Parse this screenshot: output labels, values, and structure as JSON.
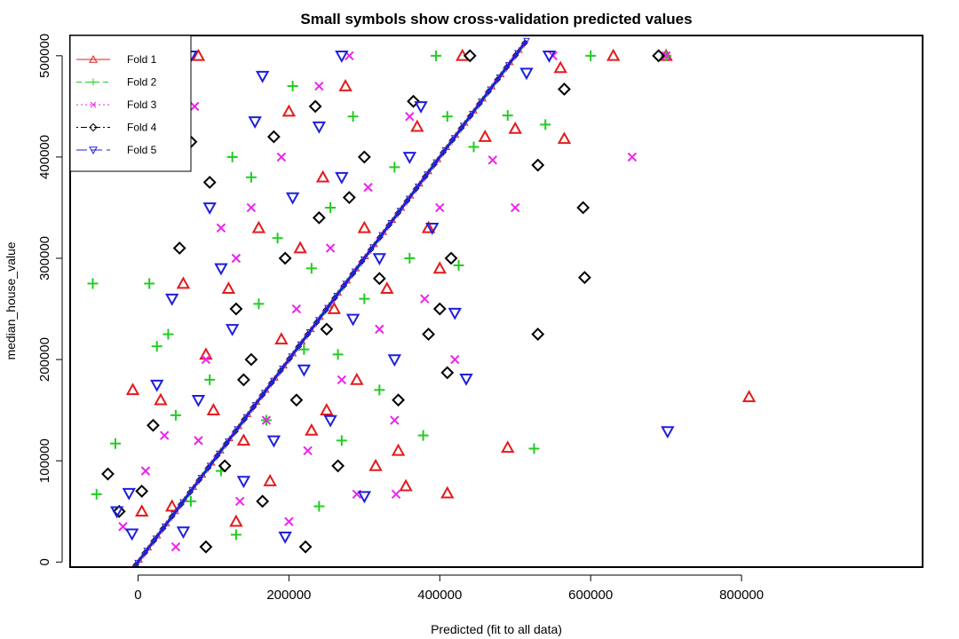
{
  "chart_data": {
    "type": "scatter",
    "title": "Small symbols show cross-validation predicted values",
    "xlabel": "Predicted (fit to all data)",
    "ylabel": "median_house_value",
    "xlim": [
      -90000,
      1040000
    ],
    "ylim": [
      -5000,
      520000
    ],
    "x_ticks": [
      0,
      200000,
      400000,
      600000,
      800000
    ],
    "y_ticks": [
      0,
      100000,
      200000,
      300000,
      400000,
      500000
    ],
    "x_tick_labels": [
      "0",
      "200000",
      "400000",
      "600000",
      "800000"
    ],
    "y_tick_labels": [
      "0",
      "100000",
      "200000",
      "300000",
      "400000",
      "500000"
    ],
    "grid": false,
    "legend_position": "top-left",
    "colors": {
      "fold1": "#e41a1c",
      "fold2": "#22cc22",
      "fold3": "#ee22ee",
      "fold4": "#000000",
      "fold5": "#1f1fdd"
    },
    "series": [
      {
        "name": "Fold 1",
        "symbol": "triangle",
        "line_style": "solid",
        "points": [
          [
            -7000,
            170000
          ],
          [
            5000,
            50000
          ],
          [
            30000,
            160000
          ],
          [
            45000,
            55000
          ],
          [
            60000,
            275000
          ],
          [
            80000,
            500000
          ],
          [
            100000,
            150000
          ],
          [
            120000,
            270000
          ],
          [
            140000,
            120000
          ],
          [
            160000,
            330000
          ],
          [
            175000,
            80000
          ],
          [
            190000,
            220000
          ],
          [
            200000,
            445000
          ],
          [
            215000,
            310000
          ],
          [
            230000,
            130000
          ],
          [
            245000,
            380000
          ],
          [
            260000,
            250000
          ],
          [
            275000,
            470000
          ],
          [
            290000,
            180000
          ],
          [
            300000,
            330000
          ],
          [
            315000,
            95000
          ],
          [
            330000,
            270000
          ],
          [
            345000,
            110000
          ],
          [
            355000,
            75000
          ],
          [
            370000,
            430000
          ],
          [
            385000,
            330000
          ],
          [
            400000,
            290000
          ],
          [
            410000,
            68000
          ],
          [
            430000,
            500000
          ],
          [
            460000,
            420000
          ],
          [
            490000,
            113000
          ],
          [
            500000,
            428000
          ],
          [
            560000,
            488000
          ],
          [
            565000,
            418000
          ],
          [
            630000,
            500000
          ],
          [
            810000,
            163000
          ],
          [
            700000,
            500000
          ],
          [
            130000,
            40000
          ],
          [
            90000,
            205000
          ],
          [
            250000,
            150000
          ]
        ]
      },
      {
        "name": "Fold 2",
        "symbol": "plus",
        "line_style": "dashed",
        "points": [
          [
            -60000,
            275000
          ],
          [
            -55000,
            67000
          ],
          [
            -30000,
            117000
          ],
          [
            15000,
            275000
          ],
          [
            25000,
            213000
          ],
          [
            40000,
            225000
          ],
          [
            50000,
            145000
          ],
          [
            70000,
            60000
          ],
          [
            95000,
            180000
          ],
          [
            125000,
            400000
          ],
          [
            130000,
            27000
          ],
          [
            150000,
            380000
          ],
          [
            170000,
            140000
          ],
          [
            185000,
            320000
          ],
          [
            205000,
            470000
          ],
          [
            220000,
            210000
          ],
          [
            240000,
            55000
          ],
          [
            255000,
            350000
          ],
          [
            270000,
            120000
          ],
          [
            285000,
            440000
          ],
          [
            300000,
            260000
          ],
          [
            320000,
            170000
          ],
          [
            340000,
            390000
          ],
          [
            360000,
            300000
          ],
          [
            378000,
            125000
          ],
          [
            395000,
            500000
          ],
          [
            410000,
            440000
          ],
          [
            425000,
            293000
          ],
          [
            445000,
            410000
          ],
          [
            490000,
            441000
          ],
          [
            525000,
            112000
          ],
          [
            540000,
            432000
          ],
          [
            600000,
            500000
          ],
          [
            700000,
            500000
          ],
          [
            110000,
            90000
          ],
          [
            160000,
            255000
          ],
          [
            230000,
            290000
          ],
          [
            265000,
            205000
          ]
        ]
      },
      {
        "name": "Fold 3",
        "symbol": "x",
        "line_style": "dotted",
        "points": [
          [
            -20000,
            35000
          ],
          [
            10000,
            90000
          ],
          [
            35000,
            125000
          ],
          [
            50000,
            15000
          ],
          [
            75000,
            450000
          ],
          [
            90000,
            200000
          ],
          [
            110000,
            330000
          ],
          [
            135000,
            60000
          ],
          [
            150000,
            350000
          ],
          [
            170000,
            140000
          ],
          [
            190000,
            400000
          ],
          [
            210000,
            250000
          ],
          [
            225000,
            110000
          ],
          [
            240000,
            470000
          ],
          [
            255000,
            310000
          ],
          [
            270000,
            180000
          ],
          [
            290000,
            67000
          ],
          [
            305000,
            370000
          ],
          [
            320000,
            230000
          ],
          [
            340000,
            140000
          ],
          [
            342000,
            67000
          ],
          [
            360000,
            440000
          ],
          [
            380000,
            260000
          ],
          [
            400000,
            350000
          ],
          [
            420000,
            200000
          ],
          [
            470000,
            397000
          ],
          [
            500000,
            350000
          ],
          [
            550000,
            500000
          ],
          [
            655000,
            400000
          ],
          [
            700000,
            500000
          ],
          [
            80000,
            120000
          ],
          [
            130000,
            300000
          ],
          [
            200000,
            40000
          ],
          [
            280000,
            500000
          ]
        ]
      },
      {
        "name": "Fold 4",
        "symbol": "diamond",
        "line_style": "dotdash",
        "points": [
          [
            -40000,
            87000
          ],
          [
            -25000,
            50000
          ],
          [
            5000,
            70000
          ],
          [
            20000,
            135000
          ],
          [
            55000,
            310000
          ],
          [
            70000,
            415000
          ],
          [
            90000,
            15000
          ],
          [
            95000,
            375000
          ],
          [
            115000,
            95000
          ],
          [
            130000,
            250000
          ],
          [
            150000,
            200000
          ],
          [
            165000,
            60000
          ],
          [
            180000,
            420000
          ],
          [
            195000,
            300000
          ],
          [
            210000,
            160000
          ],
          [
            222000,
            15000
          ],
          [
            235000,
            450000
          ],
          [
            250000,
            230000
          ],
          [
            265000,
            95000
          ],
          [
            280000,
            360000
          ],
          [
            300000,
            400000
          ],
          [
            320000,
            280000
          ],
          [
            345000,
            160000
          ],
          [
            365000,
            455000
          ],
          [
            385000,
            225000
          ],
          [
            400000,
            250000
          ],
          [
            410000,
            187000
          ],
          [
            415000,
            300000
          ],
          [
            440000,
            500000
          ],
          [
            530000,
            392000
          ],
          [
            530000,
            225000
          ],
          [
            565000,
            467000
          ],
          [
            590000,
            350000
          ],
          [
            592000,
            281000
          ],
          [
            690000,
            500000
          ],
          [
            140000,
            180000
          ],
          [
            240000,
            340000
          ]
        ]
      },
      {
        "name": "Fold 5",
        "symbol": "triangle-down",
        "line_style": "longdash",
        "points": [
          [
            -28000,
            50000
          ],
          [
            -12000,
            68000
          ],
          [
            -8000,
            28000
          ],
          [
            25000,
            175000
          ],
          [
            45000,
            260000
          ],
          [
            60000,
            30000
          ],
          [
            80000,
            160000
          ],
          [
            95000,
            350000
          ],
          [
            110000,
            290000
          ],
          [
            125000,
            230000
          ],
          [
            140000,
            80000
          ],
          [
            155000,
            435000
          ],
          [
            165000,
            480000
          ],
          [
            180000,
            120000
          ],
          [
            195000,
            25000
          ],
          [
            205000,
            360000
          ],
          [
            220000,
            190000
          ],
          [
            240000,
            430000
          ],
          [
            255000,
            140000
          ],
          [
            270000,
            380000
          ],
          [
            285000,
            240000
          ],
          [
            300000,
            65000
          ],
          [
            320000,
            300000
          ],
          [
            340000,
            200000
          ],
          [
            360000,
            400000
          ],
          [
            375000,
            450000
          ],
          [
            390000,
            330000
          ],
          [
            420000,
            246000
          ],
          [
            435000,
            181000
          ],
          [
            515000,
            483000
          ],
          [
            545000,
            500000
          ],
          [
            702000,
            129000
          ],
          [
            70000,
            500000
          ],
          [
            270000,
            500000
          ]
        ]
      }
    ],
    "fit_line": {
      "name": "",
      "color": "#1f1fdd",
      "from": [
        -10000,
        -10000
      ],
      "to": [
        515000,
        515000
      ]
    },
    "band_point_count": 220
  }
}
